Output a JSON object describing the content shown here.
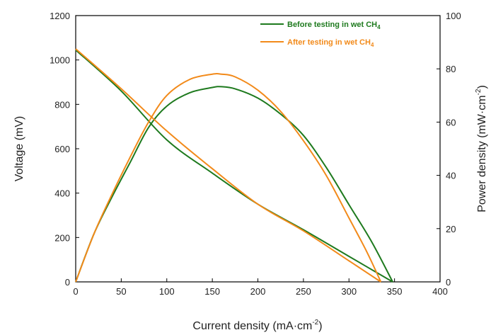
{
  "chart_data": {
    "type": "line",
    "xlabel": "Current density (mA·cm",
    "xlabel_sup": "-2",
    "xlabel_close": ")",
    "ylabel_left": "Voltage (mV)",
    "ylabel_right": "Power density (mW·cm",
    "ylabel_right_sup": "-2",
    "ylabel_right_close": ")",
    "xlim": [
      0,
      400
    ],
    "ylim_left": [
      0,
      1200
    ],
    "ylim_right": [
      0,
      100
    ],
    "x_ticks": [
      0,
      50,
      100,
      150,
      200,
      250,
      300,
      350,
      400
    ],
    "y_left_ticks": [
      0,
      200,
      400,
      600,
      800,
      1000,
      1200
    ],
    "y_right_ticks": [
      0,
      20,
      40,
      60,
      80,
      100
    ],
    "grid": false,
    "legend_position": "top-right",
    "series": [
      {
        "name": "Before testing in wet CH",
        "name_sub": "4",
        "color": "#1e7a1e",
        "voltage": {
          "x": [
            0,
            50,
            100,
            150,
            200,
            250,
            300,
            348
          ],
          "y": [
            1045,
            860,
            640,
            490,
            350,
            235,
            115,
            0
          ]
        },
        "power": {
          "x": [
            0,
            20,
            40,
            60,
            80,
            100,
            125,
            150,
            160,
            175,
            200,
            225,
            250,
            275,
            300,
            325,
            348
          ],
          "y": [
            0,
            18,
            32,
            45,
            58,
            66,
            71,
            73,
            73.3,
            72.5,
            69,
            63,
            55,
            43,
            29,
            15,
            0
          ]
        }
      },
      {
        "name": "After testing in wet CH",
        "name_sub": "4",
        "color": "#f28a1a",
        "voltage": {
          "x": [
            0,
            50,
            100,
            150,
            200,
            250,
            300,
            335
          ],
          "y": [
            1050,
            870,
            680,
            510,
            350,
            230,
            95,
            0
          ]
        },
        "power": {
          "x": [
            0,
            20,
            40,
            60,
            80,
            100,
            125,
            150,
            160,
            175,
            200,
            225,
            250,
            275,
            300,
            320,
            335
          ],
          "y": [
            0,
            18,
            33,
            47,
            60,
            70,
            76,
            78,
            78,
            77,
            72,
            64,
            53,
            40,
            24,
            11,
            0
          ]
        }
      }
    ]
  }
}
